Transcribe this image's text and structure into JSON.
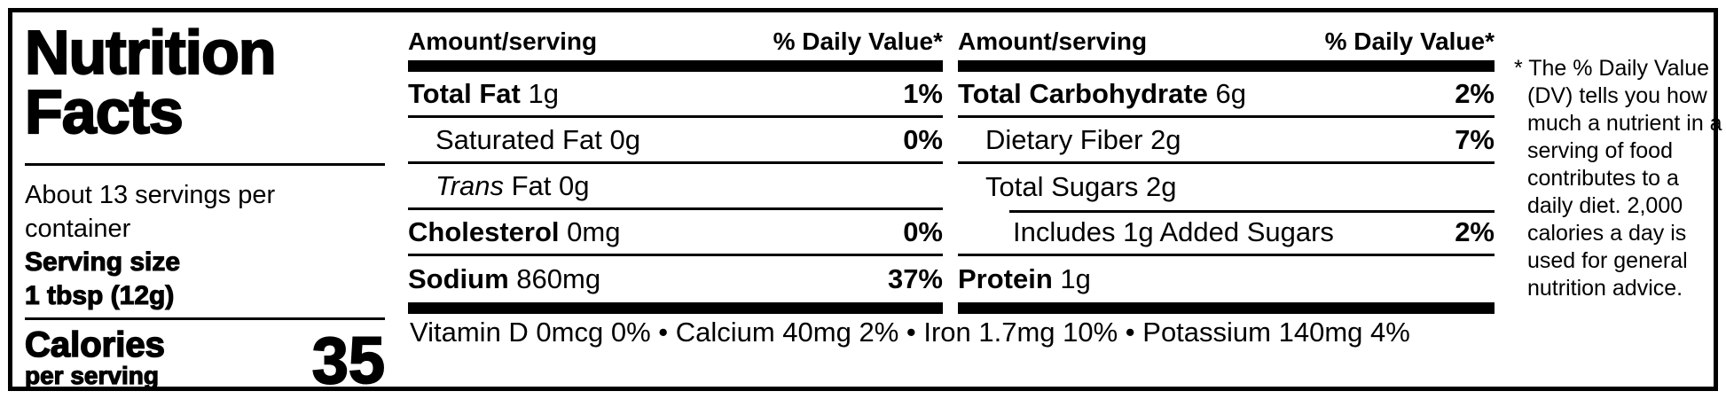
{
  "left_panel": {
    "title_line1": "Nutrition",
    "title_line2": "Facts",
    "servings_text": "About 13 servings per container",
    "serving_size_label": "Serving size",
    "serving_size_value": "1 tbsp (12g)",
    "calories_label": "Calories",
    "calories_sublabel": "per serving",
    "calories_value": "35"
  },
  "columns": [
    {
      "header_left": "Amount/serving",
      "header_right": "% Daily Value*",
      "rows": [
        {
          "name": "Total Fat",
          "amount": "1g",
          "dv": "1%"
        },
        {
          "name": "Saturated Fat",
          "amount": "0g",
          "dv": "0%"
        },
        {
          "name": "Trans",
          "amount": "Fat 0g",
          "dv": ""
        },
        {
          "name": "Cholesterol",
          "amount": "0mg",
          "dv": "0%"
        },
        {
          "name": "Sodium",
          "amount": "860mg",
          "dv": "37%"
        }
      ]
    },
    {
      "header_left": "Amount/serving",
      "header_right": "% Daily Value*",
      "rows": [
        {
          "name": "Total Carbohydrate",
          "amount": "6g",
          "dv": "2%"
        },
        {
          "name": "Dietary Fiber",
          "amount": "2g",
          "dv": "7%"
        },
        {
          "name": "Total Sugars",
          "amount": "2g",
          "dv": ""
        },
        {
          "name": "Includes 1g Added Sugars",
          "amount": "",
          "dv": "2%"
        },
        {
          "name": "Protein",
          "amount": "1g",
          "dv": ""
        }
      ]
    }
  ],
  "micronutrients": "Vitamin D 0mcg 0% • Calcium 40mg 2% • Iron 1.7mg 10% • Potassium 140mg 4%",
  "footnote": "* The % Daily Value (DV) tells you how much a nutrient in a serving of food contributes to a daily diet. 2,000 calories a day is used for general nutrition advice.",
  "colors": {
    "text": "#000000",
    "background": "#ffffff"
  }
}
